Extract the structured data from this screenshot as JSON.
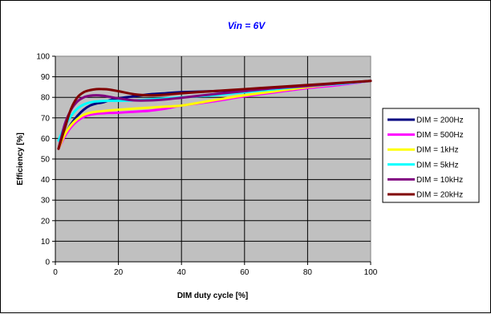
{
  "chart_data": {
    "type": "line",
    "title": "Vin = 6V",
    "title_color": "#0000ff",
    "xlabel": "DIM duty cycle [%]",
    "ylabel": "Efficiency [%]",
    "xlim": [
      0,
      100
    ],
    "ylim": [
      0,
      100
    ],
    "xticks": [
      0,
      20,
      40,
      60,
      80,
      100
    ],
    "yticks": [
      0,
      10,
      20,
      30,
      40,
      50,
      60,
      70,
      80,
      90,
      100
    ],
    "grid": true,
    "plot_background": "#c0c0c0",
    "legend_position": "right",
    "series": [
      {
        "name": "DIM = 200Hz",
        "color": "#000080",
        "x": [
          1,
          3,
          5,
          7,
          9,
          11,
          13,
          15,
          17,
          20,
          25,
          30,
          35,
          40,
          50,
          60,
          70,
          80,
          90,
          100
        ],
        "y": [
          55,
          62,
          67,
          71,
          74,
          76,
          77,
          77.5,
          78.5,
          79.5,
          80.5,
          81.5,
          82,
          82.5,
          83,
          83.5,
          84.5,
          85.5,
          86.5,
          88
        ]
      },
      {
        "name": "DIM = 500Hz",
        "color": "#ff00ff",
        "x": [
          1,
          3,
          5,
          7,
          9,
          11,
          13,
          15,
          17,
          20,
          25,
          30,
          35,
          40,
          50,
          60,
          70,
          80,
          90,
          100
        ],
        "y": [
          55,
          61,
          65.5,
          68.5,
          70.5,
          71.5,
          72,
          72.2,
          72.4,
          72.5,
          73,
          73.5,
          74.5,
          76,
          78,
          80.5,
          82.5,
          84.5,
          86,
          88
        ]
      },
      {
        "name": "DIM = 1kHz",
        "color": "#ffff00",
        "x": [
          1,
          3,
          5,
          7,
          9,
          11,
          13,
          15,
          17,
          20,
          25,
          30,
          35,
          40,
          50,
          60,
          70,
          80,
          90,
          100
        ],
        "y": [
          55,
          62,
          66.5,
          69.5,
          71.5,
          72.5,
          73,
          73.3,
          73.6,
          74,
          74.5,
          75,
          75.5,
          76,
          78.5,
          81,
          83,
          85,
          86.5,
          88
        ]
      },
      {
        "name": "DIM = 5kHz",
        "color": "#00ffff",
        "x": [
          1,
          3,
          5,
          7,
          9,
          11,
          13,
          15,
          17,
          20,
          25,
          30,
          35,
          40,
          50,
          60,
          70,
          80,
          90,
          100
        ],
        "y": [
          59,
          66,
          71,
          74.5,
          76.5,
          77.5,
          78,
          78.2,
          78.3,
          78.3,
          78.5,
          79,
          79.5,
          80,
          81,
          82.5,
          84,
          85.5,
          86.5,
          88
        ]
      },
      {
        "name": "DIM = 10kHz",
        "color": "#800080",
        "x": [
          1,
          3,
          5,
          7,
          9,
          11,
          13,
          15,
          17,
          20,
          25,
          30,
          35,
          40,
          50,
          60,
          70,
          80,
          90,
          100
        ],
        "y": [
          55,
          67,
          74,
          78,
          80,
          80.8,
          81,
          80.8,
          80.3,
          79.5,
          78.5,
          78.5,
          79,
          79.8,
          81.5,
          83,
          84.5,
          85.5,
          86.8,
          88
        ]
      },
      {
        "name": "DIM = 20kHz",
        "color": "#800000",
        "x": [
          1,
          3,
          5,
          7,
          9,
          11,
          13,
          15,
          17,
          20,
          25,
          30,
          35,
          40,
          50,
          60,
          70,
          80,
          90,
          100
        ],
        "y": [
          55,
          65,
          74.5,
          80,
          82.5,
          83.5,
          84,
          84,
          83.8,
          83,
          81.5,
          81,
          81.3,
          82,
          83,
          84,
          85,
          86,
          87,
          88
        ]
      }
    ]
  }
}
